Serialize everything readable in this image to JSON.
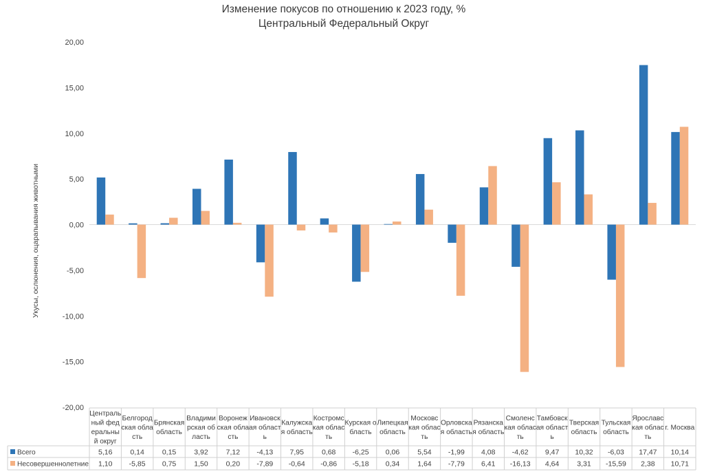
{
  "chart_data": {
    "type": "bar",
    "title": "Изменение покусов по отношению к 2023 году, %",
    "subtitle": "Центральный Федеральный Округ",
    "xlabel": "",
    "ylabel": "Укусы, ослюнения, оцарапывания животными",
    "ylim": [
      -20,
      20
    ],
    "yticks": [
      "-20,00",
      "-15,00",
      "-10,00",
      "-5,00",
      "0,00",
      "5,00",
      "10,00",
      "15,00",
      "20,00"
    ],
    "ytick_values": [
      -20,
      -15,
      -10,
      -5,
      0,
      5,
      10,
      15,
      20
    ],
    "grid": false,
    "legend_position": "data-table",
    "categories": [
      "Центральный федеральный округ",
      "Белгородская область",
      "Брянская область",
      "Владимирская область",
      "Воронежская область",
      "Ивановская область",
      "Калужская область",
      "Костромская область",
      "Курская область",
      "Липецкая область",
      "Московская область",
      "Орловская область",
      "Рязанская область",
      "Смоленская область",
      "Тамбовская область",
      "Тверская область",
      "Тульская область",
      "Ярославская область",
      "г. Москва"
    ],
    "category_label_lines": [
      [
        "Централь",
        "ный фед",
        "еральны",
        "й округ"
      ],
      [
        "Белгород",
        "ская обла",
        "сть"
      ],
      [
        "Брянская",
        "область"
      ],
      [
        "Владими",
        "рская об",
        "ласть"
      ],
      [
        "Воронеж",
        "ская обла",
        "сть"
      ],
      [
        "Ивановск",
        "ая област",
        "ь"
      ],
      [
        "Калужска",
        "я область"
      ],
      [
        "Костромс",
        "кая облас",
        "ть"
      ],
      [
        "Курская о",
        "бласть"
      ],
      [
        "Липецкая",
        "область"
      ],
      [
        "Московс",
        "кая облас",
        "ть"
      ],
      [
        "Орловска",
        "я область"
      ],
      [
        "Рязанска",
        "я область"
      ],
      [
        "Смоленс",
        "кая облас",
        "ть"
      ],
      [
        "Тамбовск",
        "ая област",
        "ь"
      ],
      [
        "Тверская",
        "область"
      ],
      [
        "Тульская",
        "область"
      ],
      [
        "Ярославс",
        "кая облас",
        "ть"
      ],
      [
        "г. Москва"
      ]
    ],
    "series": [
      {
        "name": "Всего",
        "color": "#2e75b6",
        "values": [
          5.16,
          0.14,
          0.15,
          3.92,
          7.12,
          -4.13,
          7.95,
          0.68,
          -6.25,
          0.06,
          5.54,
          -1.99,
          4.08,
          -4.62,
          9.47,
          10.32,
          -6.03,
          17.47,
          10.14
        ],
        "labels": [
          "5,16",
          "0,14",
          "0,15",
          "3,92",
          "7,12",
          "-4,13",
          "7,95",
          "0,68",
          "-6,25",
          "0,06",
          "5,54",
          "-1,99",
          "4,08",
          "-4,62",
          "9,47",
          "10,32",
          "-6,03",
          "17,47",
          "10,14"
        ]
      },
      {
        "name": "Несовершеннолетние",
        "color": "#f4b183",
        "values": [
          1.1,
          -5.85,
          0.75,
          1.5,
          0.2,
          -7.89,
          -0.64,
          -0.86,
          -5.18,
          0.34,
          1.64,
          -7.79,
          6.41,
          -16.13,
          4.64,
          3.31,
          -15.59,
          2.38,
          10.71
        ],
        "labels": [
          "1,10",
          "-5,85",
          "0,75",
          "1,50",
          "0,20",
          "-7,89",
          "-0,64",
          "-0,86",
          "-5,18",
          "0,34",
          "1,64",
          "-7,79",
          "6,41",
          "-16,13",
          "4,64",
          "3,31",
          "-15,59",
          "2,38",
          "10,71"
        ]
      }
    ]
  }
}
